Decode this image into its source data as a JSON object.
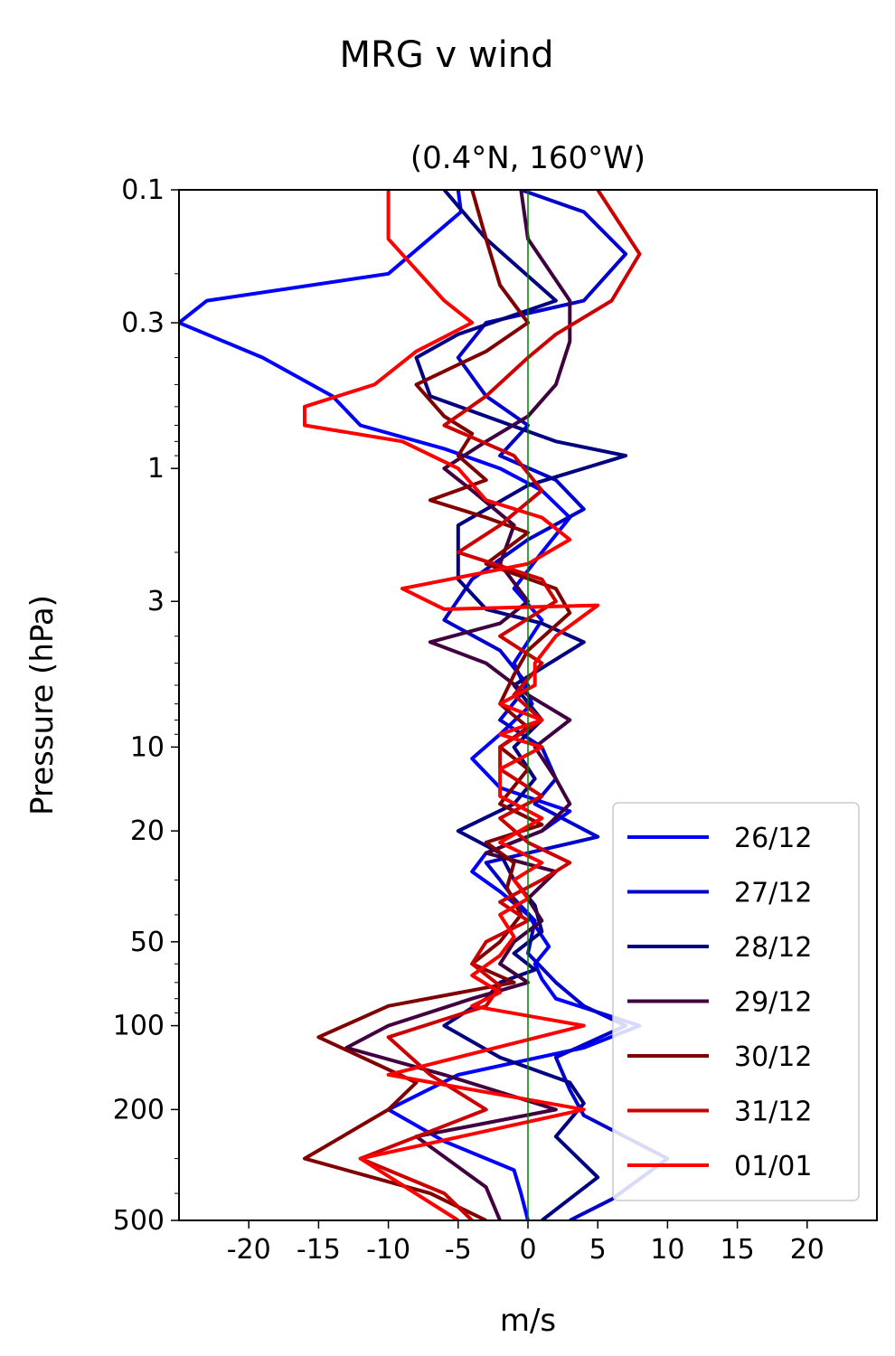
{
  "chart_data": {
    "type": "line",
    "title": "MRG v wind",
    "subtitle": "(0.4°N, 160°W)",
    "xlabel": "m/s",
    "ylabel": "Pressure (hPa)",
    "xlim": [
      -25,
      25
    ],
    "ylim": [
      500,
      0.1
    ],
    "yscale": "log",
    "xticks": [
      -20,
      -15,
      -10,
      -5,
      0,
      5,
      10,
      15,
      20
    ],
    "xtick_labels": [
      "-20",
      "-15",
      "-10",
      "-5",
      "0",
      "5",
      "10",
      "15",
      "20"
    ],
    "yticks": [
      0.1,
      0.3,
      1,
      3,
      10,
      20,
      50,
      100,
      200,
      500
    ],
    "ytick_labels": [
      "0.1",
      "0.3",
      "1",
      "3",
      "10",
      "20",
      "50",
      "100",
      "200",
      "500"
    ],
    "grid": false,
    "legend": "lower-right",
    "zero_line": {
      "x": 0,
      "color": "#008000"
    },
    "series": [
      {
        "name": "26/12",
        "color": "#0000ff",
        "points": [
          [
            -5,
            0.1
          ],
          [
            -4.8,
            0.12
          ],
          [
            -10,
            0.2
          ],
          [
            -23,
            0.25
          ],
          [
            -25,
            0.3
          ],
          [
            -19,
            0.4
          ],
          [
            -14,
            0.55
          ],
          [
            -12,
            0.7
          ],
          [
            -6,
            0.85
          ],
          [
            -2,
            1
          ],
          [
            1,
            1.2
          ],
          [
            3,
            1.5
          ],
          [
            1,
            2
          ],
          [
            -1,
            2.7
          ],
          [
            1,
            3.5
          ],
          [
            -1,
            5
          ],
          [
            0.3,
            7
          ],
          [
            -2,
            9
          ],
          [
            -4,
            11
          ],
          [
            -2,
            14
          ],
          [
            3,
            17
          ],
          [
            1,
            20
          ],
          [
            -3,
            24
          ],
          [
            -4,
            28
          ],
          [
            -2,
            33
          ],
          [
            0,
            40
          ],
          [
            1.5,
            52
          ],
          [
            0.5,
            60
          ],
          [
            1,
            68
          ],
          [
            2,
            80
          ],
          [
            8,
            100
          ],
          [
            4,
            120
          ],
          [
            -5,
            150
          ],
          [
            -10,
            200
          ],
          [
            -6,
            260
          ],
          [
            -1,
            330
          ],
          [
            -0.5,
            400
          ],
          [
            0,
            500
          ]
        ]
      },
      {
        "name": "27/12",
        "color": "#0000cc",
        "points": [
          [
            -0.5,
            0.1
          ],
          [
            4,
            0.12
          ],
          [
            7,
            0.17
          ],
          [
            4,
            0.25
          ],
          [
            -3,
            0.3
          ],
          [
            -5,
            0.4
          ],
          [
            -3,
            0.55
          ],
          [
            0,
            0.7
          ],
          [
            -2,
            0.9
          ],
          [
            2,
            1.1
          ],
          [
            4,
            1.4
          ],
          [
            0,
            1.8
          ],
          [
            -4,
            2.5
          ],
          [
            -6,
            3.5
          ],
          [
            -2,
            4.5
          ],
          [
            0,
            6
          ],
          [
            -2,
            8
          ],
          [
            1,
            10
          ],
          [
            2,
            13
          ],
          [
            0.5,
            16
          ],
          [
            5,
            21
          ],
          [
            -3,
            26
          ],
          [
            -2,
            30
          ],
          [
            -1,
            35
          ],
          [
            0.5,
            42
          ],
          [
            0,
            55
          ],
          [
            2,
            70
          ],
          [
            4,
            85
          ],
          [
            7,
            100
          ],
          [
            2,
            130
          ],
          [
            3,
            170
          ],
          [
            4,
            210
          ],
          [
            10,
            300
          ],
          [
            6,
            420
          ],
          [
            3,
            500
          ]
        ]
      },
      {
        "name": "28/12",
        "color": "#000080",
        "points": [
          [
            -6,
            0.1
          ],
          [
            -3,
            0.15
          ],
          [
            2,
            0.25
          ],
          [
            -5,
            0.33
          ],
          [
            -8,
            0.4
          ],
          [
            -7,
            0.55
          ],
          [
            -3,
            0.65
          ],
          [
            2,
            0.8
          ],
          [
            7,
            0.9
          ],
          [
            0,
            1.15
          ],
          [
            -5,
            1.6
          ],
          [
            -5,
            2.5
          ],
          [
            -3,
            3.2
          ],
          [
            1,
            3.6
          ],
          [
            4,
            4.2
          ],
          [
            -1,
            6
          ],
          [
            1,
            8
          ],
          [
            -1,
            10
          ],
          [
            0.5,
            13
          ],
          [
            -1,
            16
          ],
          [
            -5,
            20
          ],
          [
            -2,
            24
          ],
          [
            -1,
            30
          ],
          [
            0.5,
            37
          ],
          [
            1,
            46
          ],
          [
            -1,
            55
          ],
          [
            0.5,
            63
          ],
          [
            -2,
            70
          ],
          [
            -3,
            80
          ],
          [
            -6,
            100
          ],
          [
            -2,
            130
          ],
          [
            3,
            160
          ],
          [
            4,
            190
          ],
          [
            2,
            250
          ],
          [
            5,
            350
          ],
          [
            1,
            500
          ]
        ]
      },
      {
        "name": "29/12",
        "color": "#400040",
        "points": [
          [
            -0.5,
            0.1
          ],
          [
            0,
            0.15
          ],
          [
            3,
            0.25
          ],
          [
            3,
            0.35
          ],
          [
            2,
            0.5
          ],
          [
            0,
            0.65
          ],
          [
            -3,
            0.8
          ],
          [
            -6,
            1
          ],
          [
            -4,
            1.2
          ],
          [
            -1,
            1.6
          ],
          [
            -2,
            2.2
          ],
          [
            0,
            3
          ],
          [
            -2,
            3.6
          ],
          [
            -7,
            4.2
          ],
          [
            -3,
            5
          ],
          [
            0,
            6.5
          ],
          [
            3,
            8
          ],
          [
            0.5,
            10
          ],
          [
            2,
            13
          ],
          [
            3,
            16
          ],
          [
            1,
            20
          ],
          [
            -3,
            24
          ],
          [
            2,
            28
          ],
          [
            0,
            35
          ],
          [
            1,
            42
          ],
          [
            -1,
            50
          ],
          [
            -2,
            60
          ],
          [
            0,
            70
          ],
          [
            -4,
            80
          ],
          [
            -10,
            100
          ],
          [
            -13,
            120
          ],
          [
            -6,
            150
          ],
          [
            2,
            200
          ],
          [
            -8,
            250
          ],
          [
            -3,
            380
          ],
          [
            -2,
            500
          ]
        ]
      },
      {
        "name": "30/12",
        "color": "#800000",
        "points": [
          [
            -4,
            0.1
          ],
          [
            -3,
            0.15
          ],
          [
            -2,
            0.22
          ],
          [
            0,
            0.3
          ],
          [
            -3,
            0.38
          ],
          [
            -8,
            0.5
          ],
          [
            -6,
            0.65
          ],
          [
            -4,
            0.75
          ],
          [
            -5,
            0.9
          ],
          [
            -3,
            1.1
          ],
          [
            -7,
            1.3
          ],
          [
            -3,
            1.5
          ],
          [
            0,
            1.7
          ],
          [
            -3,
            2.2
          ],
          [
            2,
            2.7
          ],
          [
            3,
            3.3
          ],
          [
            0,
            4.5
          ],
          [
            -1,
            5.5
          ],
          [
            -2,
            7
          ],
          [
            0,
            8.5
          ],
          [
            -2,
            10
          ],
          [
            0,
            12
          ],
          [
            -2,
            16
          ],
          [
            1,
            19
          ],
          [
            -3,
            22
          ],
          [
            -1,
            26
          ],
          [
            -1.5,
            32
          ],
          [
            -0.5,
            40
          ],
          [
            -2,
            50
          ],
          [
            -4,
            60
          ],
          [
            -1,
            70
          ],
          [
            -10,
            85
          ],
          [
            -15,
            110
          ],
          [
            -8,
            160
          ],
          [
            -10,
            200
          ],
          [
            -16,
            300
          ],
          [
            -7,
            400
          ],
          [
            -3,
            500
          ]
        ]
      },
      {
        "name": "31/12",
        "color": "#cc0000",
        "points": [
          [
            5,
            0.1
          ],
          [
            8,
            0.17
          ],
          [
            6,
            0.25
          ],
          [
            2,
            0.33
          ],
          [
            0,
            0.4
          ],
          [
            -3,
            0.55
          ],
          [
            -6,
            0.7
          ],
          [
            -1,
            0.9
          ],
          [
            1,
            1.2
          ],
          [
            -2,
            1.6
          ],
          [
            -5,
            2
          ],
          [
            1,
            2.5
          ],
          [
            2,
            3
          ],
          [
            -2,
            4
          ],
          [
            1,
            5
          ],
          [
            -1,
            6.5
          ],
          [
            1,
            8
          ],
          [
            -2,
            10
          ],
          [
            -2,
            12
          ],
          [
            1,
            15
          ],
          [
            -2,
            18
          ],
          [
            0,
            22
          ],
          [
            3,
            26
          ],
          [
            1,
            30
          ],
          [
            -2,
            36
          ],
          [
            0,
            42
          ],
          [
            -3,
            50
          ],
          [
            -4,
            60
          ],
          [
            -2,
            72
          ],
          [
            -3,
            85
          ],
          [
            -10,
            110
          ],
          [
            -7,
            150
          ],
          [
            -3,
            200
          ],
          [
            -12,
            300
          ],
          [
            -6,
            400
          ],
          [
            -4,
            500
          ]
        ]
      },
      {
        "name": "01/01",
        "color": "#ff0000",
        "points": [
          [
            -10,
            0.1
          ],
          [
            -10,
            0.15
          ],
          [
            -6,
            0.25
          ],
          [
            -4,
            0.3
          ],
          [
            -8,
            0.38
          ],
          [
            -11,
            0.5
          ],
          [
            -16,
            0.6
          ],
          [
            -16,
            0.7
          ],
          [
            -9,
            0.8
          ],
          [
            -5,
            1
          ],
          [
            -3,
            1.3
          ],
          [
            1,
            1.5
          ],
          [
            3,
            1.8
          ],
          [
            0,
            2.2
          ],
          [
            -9,
            2.7
          ],
          [
            -6,
            3.2
          ],
          [
            5,
            3.1
          ],
          [
            2,
            4
          ],
          [
            0.5,
            5
          ],
          [
            0.5,
            6
          ],
          [
            -2,
            7
          ],
          [
            1,
            8
          ],
          [
            -2,
            9
          ],
          [
            1,
            10
          ],
          [
            -2,
            12
          ],
          [
            -2,
            15
          ],
          [
            1,
            18
          ],
          [
            -2,
            22
          ],
          [
            1,
            26
          ],
          [
            -1,
            30
          ],
          [
            0,
            35
          ],
          [
            -2,
            40
          ],
          [
            -1,
            48
          ],
          [
            -2,
            56
          ],
          [
            -4,
            66
          ],
          [
            -2,
            76
          ],
          [
            -4,
            85
          ],
          [
            4,
            100
          ],
          [
            -10,
            150
          ],
          [
            4,
            200
          ],
          [
            -12,
            300
          ],
          [
            -5,
            500
          ]
        ]
      }
    ]
  }
}
